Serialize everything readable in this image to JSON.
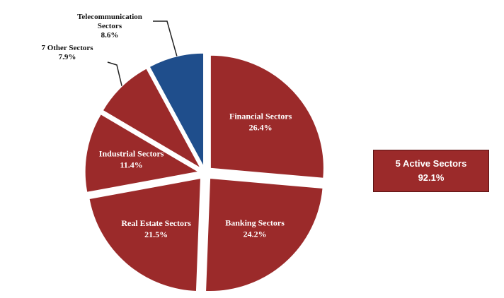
{
  "chart_data": {
    "type": "pie",
    "categories": [
      "Financial Sectors",
      "Banking Sectors",
      "Real Estate Sectors",
      "Industrial Sectors",
      "Telecommunication Sectors",
      "7 Other Sectors"
    ],
    "values": [
      26.4,
      24.2,
      21.5,
      11.4,
      8.6,
      7.9
    ],
    "value_labels": [
      "26.4%",
      "24.2%",
      "21.5%",
      "11.4%",
      "8.6%",
      "7.9%"
    ],
    "colors": [
      "#9b2a2a",
      "#9b2a2a",
      "#9b2a2a",
      "#9b2a2a",
      "#9b2a2a",
      "#1f4e8c"
    ],
    "annotation": {
      "label": "5 Active Sectors",
      "value": 92.1,
      "value_label": "92.1%"
    }
  }
}
